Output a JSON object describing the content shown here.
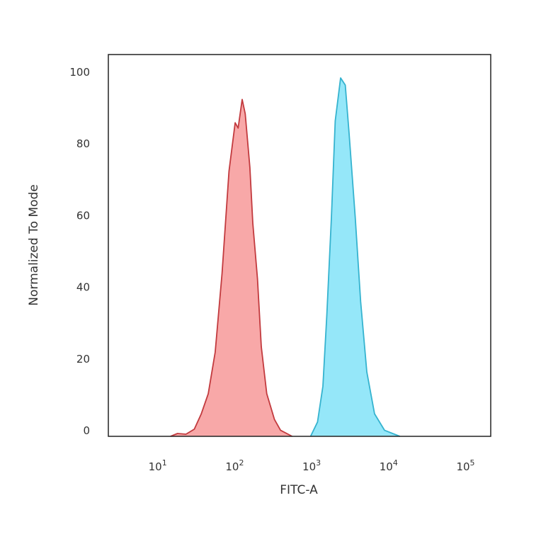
{
  "chart_data": {
    "type": "area",
    "xlabel": "FITC-A",
    "ylabel": "Normalized To Mode",
    "xscale": "log",
    "xlim": [
      2.1,
      195000
    ],
    "ylim": [
      0,
      100
    ],
    "grid": false,
    "legend": "none",
    "x_ticks": [
      {
        "base": "10",
        "exp": "1",
        "value": 10
      },
      {
        "base": "10",
        "exp": "2",
        "value": 100
      },
      {
        "base": "10",
        "exp": "3",
        "value": 1000
      },
      {
        "base": "10",
        "exp": "4",
        "value": 10000
      },
      {
        "base": "10",
        "exp": "5",
        "value": 100000
      }
    ],
    "y_ticks": [
      "0",
      "20",
      "40",
      "60",
      "80",
      "100"
    ],
    "series": [
      {
        "color_fill": "#f8a3a3",
        "color_line": "#c23a3e",
        "points": [
          [
            13.5,
            0
          ],
          [
            16.6,
            0.8
          ],
          [
            21.4,
            0.6
          ],
          [
            27.5,
            2
          ],
          [
            33.9,
            6.3
          ],
          [
            41.7,
            11.9
          ],
          [
            51.3,
            23.5
          ],
          [
            63.1,
            45.5
          ],
          [
            77.6,
            74
          ],
          [
            93.3,
            87.5
          ],
          [
            102,
            86
          ],
          [
            115,
            94
          ],
          [
            126,
            90
          ],
          [
            145,
            75
          ],
          [
            158,
            59.5
          ],
          [
            182,
            44
          ],
          [
            204,
            25
          ],
          [
            240,
            11.9
          ],
          [
            302,
            4.7
          ],
          [
            363,
            1.7
          ],
          [
            513,
            0
          ]
        ]
      },
      {
        "color_fill": "#8fe6f9",
        "color_line": "#35b3cf",
        "points": [
          [
            891,
            0
          ],
          [
            1096,
            4
          ],
          [
            1288,
            14
          ],
          [
            1445,
            33.7
          ],
          [
            1660,
            61
          ],
          [
            1862,
            88
          ],
          [
            2188,
            100
          ],
          [
            2512,
            98
          ],
          [
            2818,
            84.5
          ],
          [
            3388,
            61
          ],
          [
            3981,
            37.6
          ],
          [
            4786,
            18
          ],
          [
            6026,
            6.3
          ],
          [
            8128,
            1.7
          ],
          [
            12882,
            0
          ]
        ]
      }
    ]
  }
}
